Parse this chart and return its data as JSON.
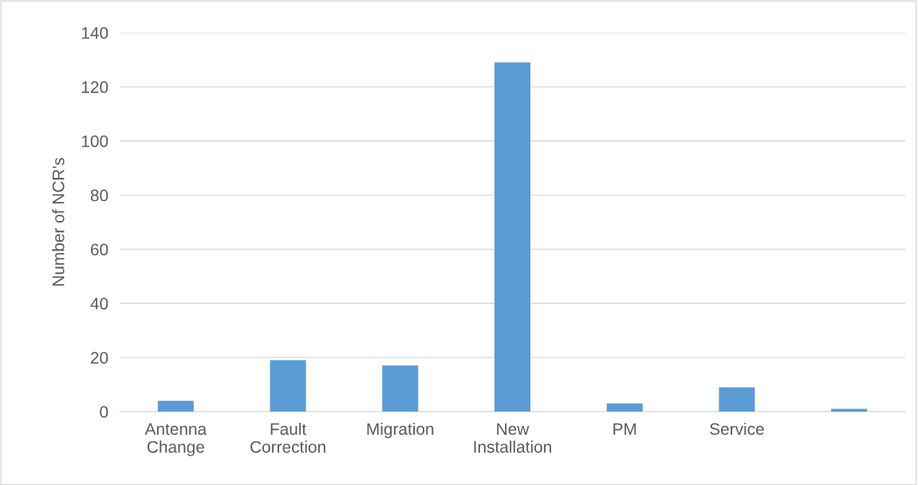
{
  "chart_data": {
    "type": "bar",
    "ylabel": "Number of NCR's",
    "categories": [
      "Antenna Change",
      "Fault Correction",
      "Migration",
      "New Installation",
      "PM",
      "Service",
      null
    ],
    "values": [
      4,
      19,
      17,
      129,
      3,
      9,
      1
    ],
    "color": "#5b9bd5",
    "ylim": [
      0,
      140
    ],
    "yticks": [
      0,
      20,
      40,
      60,
      80,
      100,
      120,
      140
    ],
    "grid": "y",
    "legend": false
  }
}
